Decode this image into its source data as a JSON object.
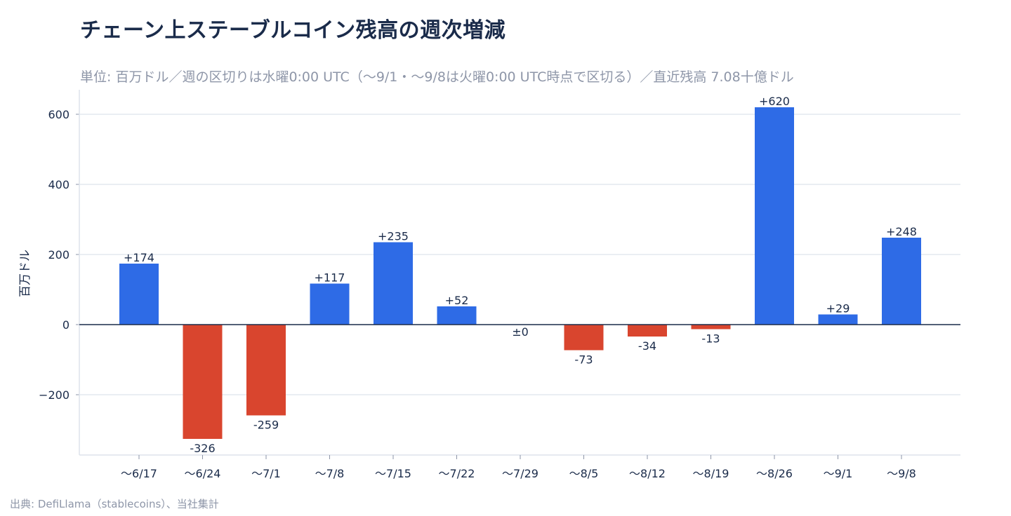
{
  "title": "チェーン上ステーブルコイン残高の週次増減",
  "subtitle": "単位: 百万ドル／週の区切りは水曜0:00 UTC（〜9/1・〜9/8は火曜0:00 UTC時点で区切る）／直近残高 7.08十億ドル",
  "source": "出典: DefiLlama（stablecoins）、当社集計",
  "colors": {
    "positive": "#2e6be6",
    "negative": "#d9452e",
    "grid": "#dde3ec",
    "zero": "#1a2b4a"
  },
  "chart_data": {
    "type": "bar",
    "title": "チェーン上ステーブルコイン残高の週次増減",
    "xlabel": "",
    "ylabel": "百万ドル",
    "ylim": [
      -370,
      670
    ],
    "yticks": [
      -200,
      0,
      200,
      400,
      600
    ],
    "ytick_labels": [
      "−200",
      "0",
      "200",
      "400",
      "600"
    ],
    "grid": true,
    "categories": [
      "〜6/17",
      "〜6/24",
      "〜7/1",
      "〜7/8",
      "〜7/15",
      "〜7/22",
      "〜7/29",
      "〜8/5",
      "〜8/12",
      "〜8/19",
      "〜8/26",
      "〜9/1",
      "〜9/8"
    ],
    "values": [
      174,
      -326,
      -259,
      117,
      235,
      52,
      0,
      -73,
      -34,
      -13,
      620,
      29,
      248
    ],
    "data_labels": [
      "+174",
      "-326",
      "-259",
      "+117",
      "+235",
      "+52",
      "±0",
      "-73",
      "-34",
      "-13",
      "+620",
      "+29",
      "+248"
    ]
  }
}
